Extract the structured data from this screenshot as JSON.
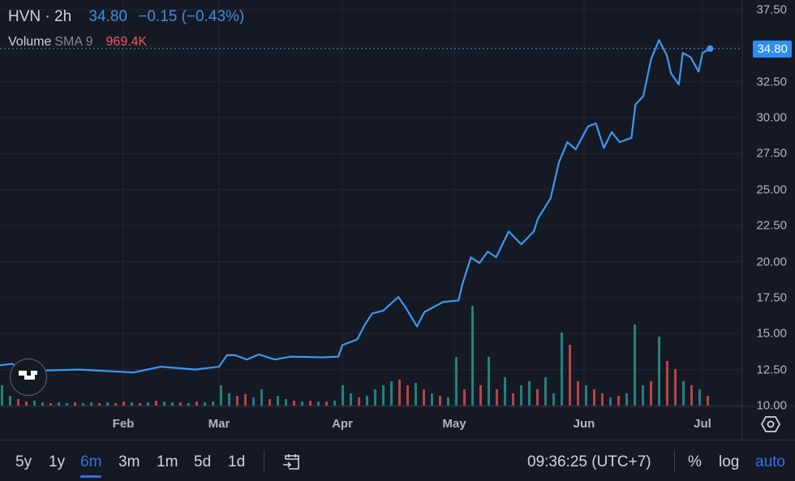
{
  "header": {
    "symbol": "HVN · 2h",
    "last": "34.80",
    "change": "−0.15 (−0.43%)",
    "volume_label": "Volume",
    "sma_label": "SMA 9",
    "sma_value": "969.4K"
  },
  "price_tag": "34.80",
  "colors": {
    "line": "#3d98f0",
    "up": "#26a69a",
    "down": "#ef5350",
    "accent": "#3a6ee8",
    "background": "#151924"
  },
  "toolbar": {
    "ranges": [
      "5y",
      "1y",
      "6m",
      "3m",
      "1m",
      "5d",
      "1d"
    ],
    "active_range": "6m",
    "time": "09:36:25 (UTC+7)",
    "percent": "%",
    "log": "log",
    "auto": "auto"
  },
  "chart_data": {
    "type": "line",
    "title": "",
    "x_tick_labels": [
      "Feb",
      "Mar",
      "Apr",
      "May",
      "Jun",
      "Jul"
    ],
    "y_ticks": [
      "37.50",
      "32.50",
      "30.00",
      "27.50",
      "25.00",
      "22.50",
      "20.00",
      "17.50",
      "15.00",
      "12.50",
      "10.00"
    ],
    "ylim": [
      10,
      37.5
    ],
    "grid": true,
    "series": [
      {
        "points": [
          [
            "01-01",
            12.8
          ],
          [
            "01-04",
            12.9
          ],
          [
            "01-07",
            12.4
          ],
          [
            "01-21",
            12.5
          ],
          [
            "02-04",
            12.3
          ],
          [
            "02-12",
            12.7
          ],
          [
            "02-22",
            12.5
          ],
          [
            "03-01",
            12.7
          ],
          [
            "03-03",
            13.5
          ],
          [
            "03-05",
            13.5
          ],
          [
            "03-08",
            13.2
          ],
          [
            "03-11",
            13.55
          ],
          [
            "03-15",
            13.2
          ],
          [
            "03-19",
            13.4
          ],
          [
            "03-27",
            13.35
          ],
          [
            "03-31",
            13.4
          ],
          [
            "04-01",
            14.2
          ],
          [
            "04-05",
            14.6
          ],
          [
            "04-07",
            15.6
          ],
          [
            "04-09",
            16.4
          ],
          [
            "04-12",
            16.6
          ],
          [
            "04-16",
            17.55
          ],
          [
            "04-18",
            16.8
          ],
          [
            "04-21",
            15.5
          ],
          [
            "04-23",
            16.5
          ],
          [
            "04-28",
            17.2
          ],
          [
            "05-02",
            17.3
          ],
          [
            "05-03",
            18.5
          ],
          [
            "05-05",
            20.3
          ],
          [
            "05-07",
            19.9
          ],
          [
            "05-09",
            20.7
          ],
          [
            "05-11",
            20.3
          ],
          [
            "05-14",
            22.1
          ],
          [
            "05-17",
            21.2
          ],
          [
            "05-20",
            22.1
          ],
          [
            "05-21",
            23.0
          ],
          [
            "05-24",
            24.4
          ],
          [
            "05-26",
            26.9
          ],
          [
            "05-28",
            28.3
          ],
          [
            "05-30",
            27.8
          ],
          [
            "06-02",
            29.4
          ],
          [
            "06-04",
            29.6
          ],
          [
            "06-06",
            27.9
          ],
          [
            "06-08",
            29.0
          ],
          [
            "06-10",
            28.3
          ],
          [
            "06-13",
            28.6
          ],
          [
            "06-14",
            30.9
          ],
          [
            "06-16",
            31.5
          ],
          [
            "06-18",
            34.1
          ],
          [
            "06-20",
            35.4
          ],
          [
            "06-22",
            34.3
          ],
          [
            "06-23",
            33.1
          ],
          [
            "06-25",
            32.3
          ],
          [
            "06-26",
            34.5
          ],
          [
            "06-28",
            34.2
          ],
          [
            "06-30",
            33.2
          ],
          [
            "07-01",
            34.5
          ],
          [
            "07-03",
            34.8
          ]
        ]
      }
    ],
    "volume": [
      25,
      12,
      -8,
      -5,
      6,
      4,
      -3,
      4,
      3,
      -4,
      3,
      4,
      -3,
      4,
      -3,
      -5,
      4,
      -3,
      4,
      -6,
      5,
      4,
      -4,
      3,
      -5,
      4,
      5,
      25,
      15,
      -12,
      -14,
      10,
      20,
      -8,
      12,
      8,
      -6,
      5,
      -6,
      5,
      -5,
      6,
      25,
      15,
      -10,
      12,
      20,
      25,
      30,
      -32,
      -25,
      28,
      -20,
      15,
      -12,
      10,
      60,
      -20,
      123,
      -25,
      60,
      -20,
      35,
      -15,
      25,
      30,
      -20,
      35,
      15,
      90,
      -75,
      -30,
      25,
      -20,
      -15,
      10,
      -12,
      15,
      100,
      25,
      -30,
      85,
      -55,
      -45,
      30,
      -25,
      20,
      -12
    ]
  }
}
